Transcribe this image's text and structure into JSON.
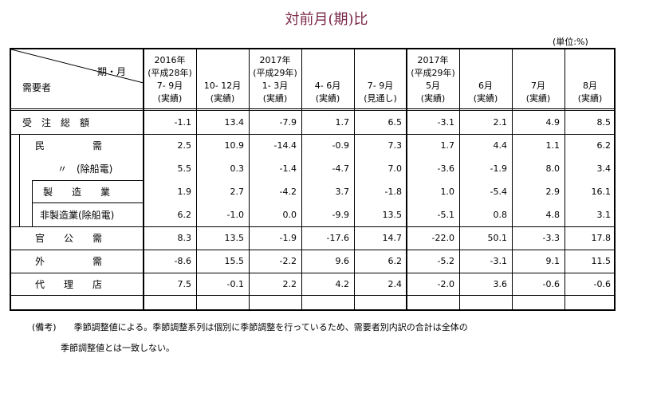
{
  "title": "対前月(期)比",
  "unit": "(単位:%)",
  "header": {
    "corner_top": "期・月",
    "corner_bottom": "需要者",
    "columns": [
      [
        "2016年",
        "(平成28年)",
        "7- 9月",
        "(実績)"
      ],
      [
        "10- 12月",
        "(実績)"
      ],
      [
        "2017年",
        "(平成29年)",
        "1- 3月",
        "(実績)"
      ],
      [
        "4- 6月",
        "(実績)"
      ],
      [
        "7- 9月",
        "(見通し)"
      ],
      [
        "2017年",
        "(平成29年)",
        "5月",
        "(実績)"
      ],
      [
        "6月",
        "(実績)"
      ],
      [
        "7月",
        "(実績)"
      ],
      [
        "8月",
        "(実績)"
      ]
    ]
  },
  "rows": [
    {
      "label": "受　注　総　額",
      "values": [
        "-1.1",
        "13.4",
        "-7.9",
        "1.7",
        "6.5",
        "-3.1",
        "2.1",
        "4.9",
        "8.5"
      ]
    },
    {
      "label": "民　　　　　需",
      "values": [
        "2.5",
        "10.9",
        "-14.4",
        "-0.9",
        "7.3",
        "1.7",
        "4.4",
        "1.1",
        "6.2"
      ]
    },
    {
      "label": "〃　(除船電)",
      "values": [
        "5.5",
        "0.3",
        "-1.4",
        "-4.7",
        "7.0",
        "-3.6",
        "-1.9",
        "8.0",
        "3.4"
      ]
    },
    {
      "label": "製　　造　　業",
      "values": [
        "1.9",
        "2.7",
        "-4.2",
        "3.7",
        "-1.8",
        "1.0",
        "-5.4",
        "2.9",
        "16.1"
      ]
    },
    {
      "label": "非製造業(除船電)",
      "values": [
        "6.2",
        "-1.0",
        "0.0",
        "-9.9",
        "13.5",
        "-5.1",
        "0.8",
        "4.8",
        "3.1"
      ]
    },
    {
      "label": "官　　公　　需",
      "values": [
        "8.3",
        "13.5",
        "-1.9",
        "-17.6",
        "14.7",
        "-22.0",
        "50.1",
        "-3.3",
        "17.8"
      ]
    },
    {
      "label": "外　　　　　需",
      "values": [
        "-8.6",
        "15.5",
        "-2.2",
        "9.6",
        "6.2",
        "-5.2",
        "-3.1",
        "9.1",
        "11.5"
      ]
    },
    {
      "label": "代　　理　　店",
      "values": [
        "7.5",
        "-0.1",
        "2.2",
        "4.2",
        "2.4",
        "-2.0",
        "3.6",
        "-0.6",
        "-0.6"
      ]
    }
  ],
  "notes": {
    "line1": "(備考)　　季節調整値による。季節調整系列は個別に季節調整を行っているため、需要者別内訳の合計は全体の",
    "line2": "季節調整値とは一致しない。"
  }
}
